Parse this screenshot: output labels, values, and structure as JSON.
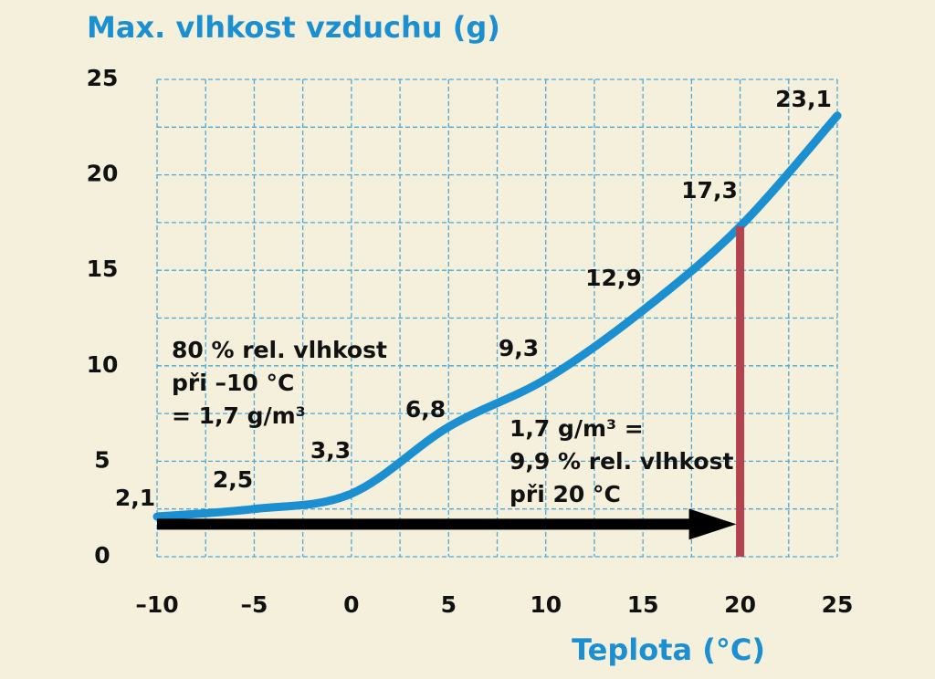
{
  "chart_data": {
    "type": "line",
    "title": "Max. vlhkost vzduchu (g)",
    "x_label": "Teplota (°C)",
    "x": [
      -10,
      -5,
      0,
      5,
      10,
      15,
      20,
      25
    ],
    "series": [
      {
        "name": "Max. vlhkost vzduchu",
        "color": "#1b8fcf",
        "values": [
          2.1,
          2.5,
          3.3,
          6.8,
          9.3,
          12.9,
          17.3,
          23.1
        ],
        "value_labels": [
          "2,1",
          "2,5",
          "3,3",
          "6,8",
          "9,3",
          "12,9",
          "17,3",
          "23,1"
        ]
      }
    ],
    "xlim": [
      -10,
      25
    ],
    "xticks": [
      {
        "value": -10,
        "label": "–10"
      },
      {
        "value": -5,
        "label": "–5"
      },
      0,
      5,
      10,
      15,
      20,
      25
    ],
    "ylim": [
      0,
      25
    ],
    "yticks": [
      0,
      5,
      10,
      15,
      20,
      25
    ],
    "grid": true,
    "grid_x": [
      -10,
      -7.5,
      -5,
      -2.5,
      0,
      2.5,
      5,
      7.5,
      10,
      12.5,
      15,
      17.5,
      20,
      22.5,
      25
    ],
    "grid_y": [
      0,
      2.5,
      5,
      7.5,
      10,
      12.5,
      15,
      17.5,
      20,
      22.5,
      25
    ],
    "arrow_level": 1.7,
    "marker_color": "#b4424f",
    "annotations": [
      {
        "lines": [
          "80 % rel. vlhkost",
          "při –10 °C",
          "= 1,7 g/m³"
        ]
      },
      {
        "lines": [
          "1,7 g/m³ =",
          "9,9 % rel. vlhkost",
          "při 20 °C"
        ]
      }
    ]
  }
}
